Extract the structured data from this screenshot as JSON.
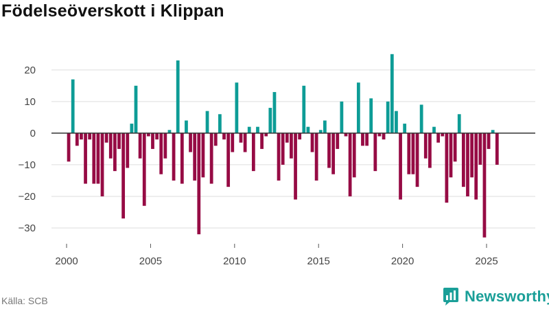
{
  "title": "Födelseöverskott i Klippan",
  "source": "Källa: SCB",
  "brand": {
    "name": "Newsworthy",
    "icon": "newsworthy-logo-icon"
  },
  "colors": {
    "positive": "#0d9c96",
    "negative": "#960b44",
    "zero_line": "#333333",
    "grid": "#dddddd"
  },
  "chart_data": {
    "type": "bar",
    "title": "Födelseöverskott i Klippan",
    "xlabel": "",
    "ylabel": "",
    "period": "quarterly",
    "first_period": "2000-Q1",
    "ylim": [
      -35,
      28
    ],
    "yticks": [
      20,
      10,
      0,
      -10,
      -20,
      -30
    ],
    "xticks": [
      2000,
      2005,
      2010,
      2015,
      2020,
      2025
    ],
    "xlim": [
      1999.1,
      2027.9
    ],
    "values": [
      -9,
      17,
      -4,
      -2,
      -16,
      -2,
      -16,
      -16,
      -20,
      -3,
      -8,
      -12,
      -5,
      -27,
      -11,
      3,
      15,
      -8,
      -23,
      -1,
      -5,
      -2,
      -13,
      -8,
      1,
      -15,
      23,
      -16,
      4,
      -6,
      -15,
      -32,
      -14,
      7,
      -16,
      -4,
      6,
      -2,
      -17,
      -6,
      16,
      -3,
      -6,
      2,
      -12,
      2,
      -5,
      -1,
      8,
      13,
      -15,
      -10,
      -3,
      -8,
      -21,
      -2,
      15,
      2,
      -6,
      -15,
      1,
      4,
      -11,
      -13,
      -5,
      10,
      -1,
      -20,
      -14,
      16,
      -4,
      -4,
      11,
      -12,
      -1,
      -2,
      10,
      25,
      7,
      -21,
      3,
      -13,
      -13,
      -17,
      9,
      -8,
      -11,
      2,
      -3,
      -1,
      -22,
      -14,
      -9,
      6,
      -17,
      -20,
      -14,
      -21,
      -10,
      -33,
      -5,
      1,
      -10
    ]
  }
}
